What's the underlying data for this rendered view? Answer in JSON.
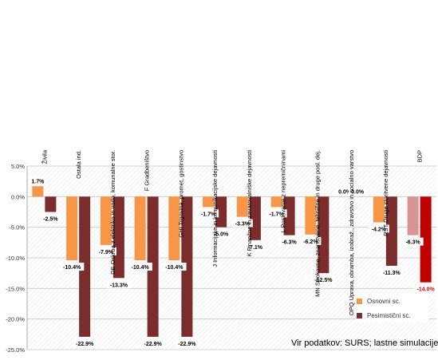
{
  "chart_data": {
    "type": "bar",
    "categories": [
      "Živila",
      "Ostala ind.",
      "DE Oskrba z elektriko in vodo, komunalne stor.",
      "F Gradbeništvo",
      "GHI Trgovina, promet, gostinstvo",
      "J Informacijske in komunikacijske dejavnosti",
      "K Finančne in zavarovalniške dejavnosti",
      "L Poslovanje z nepremičninami",
      "MN Strokovne, znanstvene, tehnične in druge posl. dej.",
      "OPQ Uprava, obramba, izobraž., zdravstvo in socialno varstvo",
      "RST Druge storitvene dejavnosti",
      "BDP"
    ],
    "series": [
      {
        "name": "Osnovni sc.",
        "values": [
          1.7,
          -10.4,
          -7.9,
          -10.4,
          -10.4,
          -1.7,
          -3.3,
          -1.7,
          -6.2,
          0.0,
          -4.2,
          -6.3
        ],
        "labels": [
          "1.7%",
          "-10.4%",
          "-7.9%",
          "-10.4%",
          "-10.4%",
          "-1.7%",
          "-3.3%",
          "-1.7%",
          "-6.2%",
          "0.0%",
          "-4.2%",
          "-6.3%"
        ]
      },
      {
        "name": "Pesimistični sc.",
        "values": [
          -2.5,
          -22.9,
          -13.3,
          -22.9,
          -22.9,
          -5.0,
          -7.1,
          -6.3,
          -12.5,
          0.0,
          -11.3,
          -14.0
        ],
        "labels": [
          "-2.5%",
          "-22.9%",
          "-13.3%",
          "-22.9%",
          "-22.9%",
          "-5.0%",
          "-7.1%",
          "-6.3%",
          "-12.5%",
          "0.0%",
          "-11.3%",
          "-14.0%"
        ]
      }
    ],
    "ylim": [
      -25,
      5
    ],
    "yticks": [
      5,
      0,
      -5,
      -10,
      -15,
      -20,
      -25
    ],
    "ytick_labels": [
      "5.0%",
      "0.0%",
      "-5.0%",
      "-10.0%",
      "-15.0%",
      "-20.0%",
      "-25.0%"
    ],
    "grid": true,
    "legend_position": "bottom-right",
    "colors": {
      "base": "#F79646",
      "pessimistic": "#7B2C2C",
      "base_highlight": "#D99594",
      "pessimistic_highlight": "#C00000",
      "highlight_label": "#E00000",
      "grid": "#c8c8c8",
      "category_label": "#000000"
    },
    "highlight_index": 11
  },
  "source": "Vir podatkov: SURS; lastne simulacije"
}
